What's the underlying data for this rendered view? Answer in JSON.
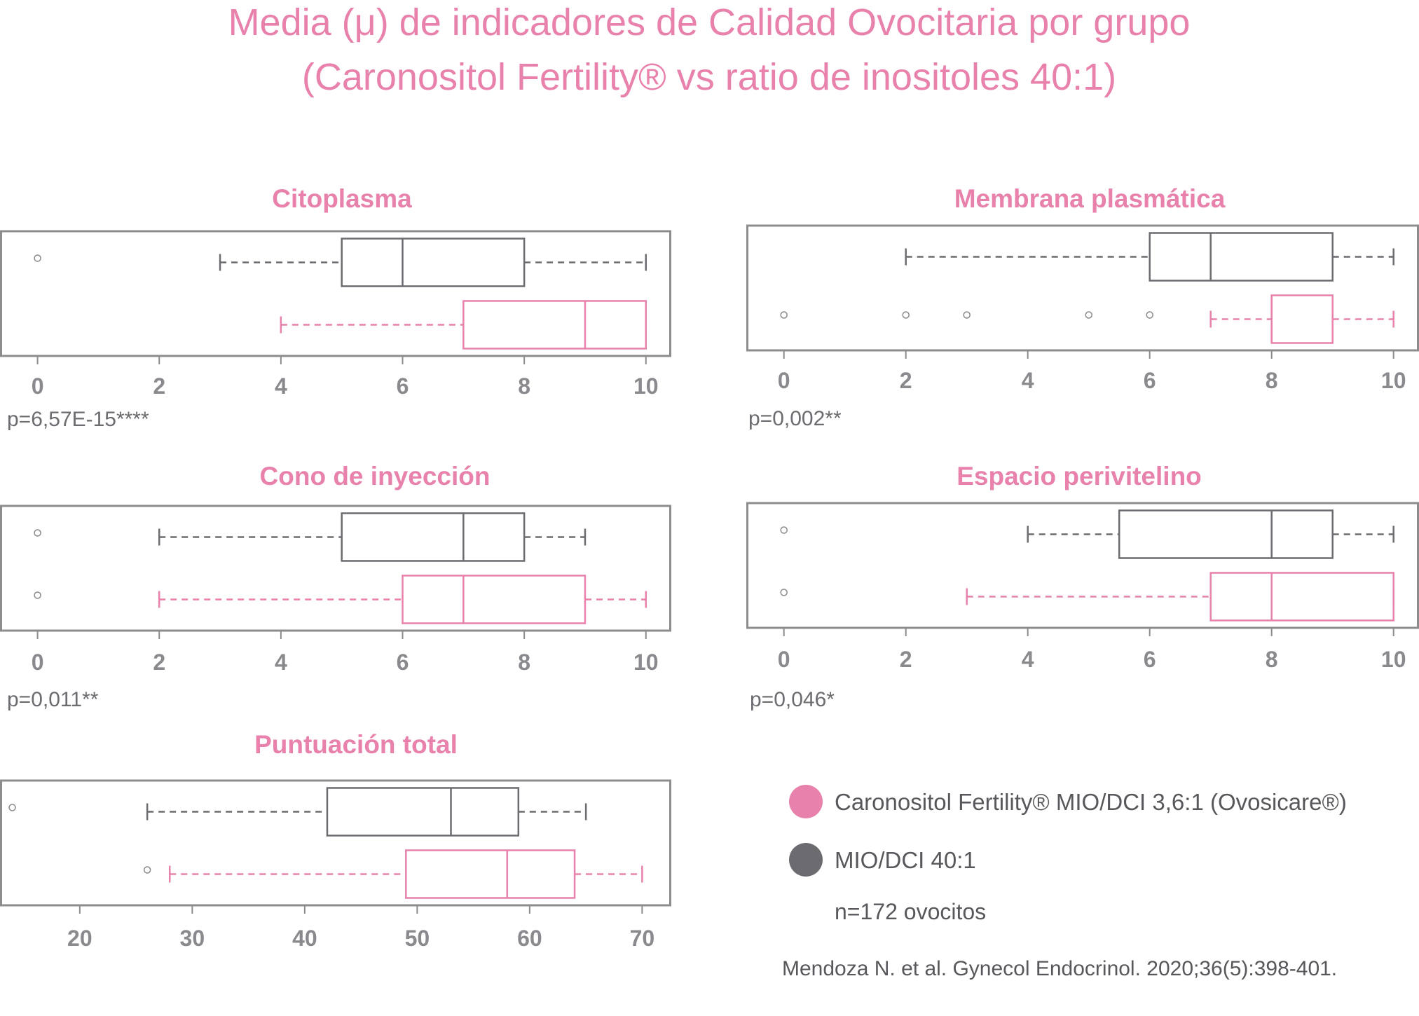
{
  "title": {
    "line1": "Media (μ) de indicadores de Calidad Ovocitaria por grupo",
    "line2": "(Caronositol Fertility® vs ratio de inositoles 40:1)"
  },
  "colors": {
    "caronositol": "#e881ab",
    "mio_dci": "#6b6b70",
    "frame": "#8c8c8c",
    "accent_text": "#e881ab"
  },
  "legend": {
    "items": [
      {
        "label": "Caronositol Fertility® MIO/DCI 3,6:1 (Ovosicare®)",
        "color": "#e881ab",
        "key": "caronositol"
      },
      {
        "label": "MIO/DCI 40:1",
        "color": "#6b6b70",
        "key": "mio_dci"
      }
    ],
    "note": "n=172 ovocitos"
  },
  "citation": "Mendoza N. et al. Gynecol Endocrinol. 2020;36(5):398-401.",
  "chart_data": [
    {
      "type": "boxplot",
      "title": "Citoplasma",
      "ticks": [
        "0",
        "2",
        "4",
        "6",
        "8",
        "10"
      ],
      "xlim": [
        -0.6,
        10.4
      ],
      "pvalue": "p=6,57E-15****",
      "series": [
        {
          "group": "mio_dci",
          "whisker_low": 3,
          "q1": 5,
          "median": 6,
          "q3": 8,
          "whisker_high": 10,
          "outliers": [
            0
          ]
        },
        {
          "group": "caronositol",
          "whisker_low": 4,
          "q1": 7,
          "median": 9,
          "q3": 10,
          "whisker_high": 10,
          "outliers": []
        }
      ]
    },
    {
      "type": "boxplot",
      "title": "Membrana plasmática",
      "ticks": [
        "0",
        "2",
        "4",
        "6",
        "8",
        "10"
      ],
      "xlim": [
        -0.6,
        10.4
      ],
      "pvalue": "p=0,002**",
      "series": [
        {
          "group": "mio_dci",
          "whisker_low": 2,
          "q1": 6,
          "median": 7,
          "q3": 9,
          "whisker_high": 10,
          "outliers": []
        },
        {
          "group": "caronositol",
          "whisker_low": 7,
          "q1": 8,
          "median": 8,
          "q3": 9,
          "whisker_high": 10,
          "outliers": [
            0,
            2,
            3,
            5,
            6
          ]
        }
      ]
    },
    {
      "type": "boxplot",
      "title": "Cono de inyección",
      "ticks": [
        "0",
        "2",
        "4",
        "6",
        "8",
        "10"
      ],
      "xlim": [
        -0.6,
        10.4
      ],
      "pvalue": "p=0,011**",
      "series": [
        {
          "group": "mio_dci",
          "whisker_low": 2,
          "q1": 5,
          "median": 7,
          "q3": 8,
          "whisker_high": 9,
          "outliers": [
            0
          ]
        },
        {
          "group": "caronositol",
          "whisker_low": 2,
          "q1": 6,
          "median": 7,
          "q3": 9,
          "whisker_high": 10,
          "outliers": [
            0
          ]
        }
      ]
    },
    {
      "type": "boxplot",
      "title": "Espacio perivitelino",
      "ticks": [
        "0",
        "2",
        "4",
        "6",
        "8",
        "10"
      ],
      "xlim": [
        -0.6,
        10.4
      ],
      "pvalue": "p=0,046*",
      "series": [
        {
          "group": "mio_dci",
          "whisker_low": 4,
          "q1": 5.5,
          "median": 8,
          "q3": 9,
          "whisker_high": 10,
          "outliers": [
            0
          ]
        },
        {
          "group": "caronositol",
          "whisker_low": 3,
          "q1": 7,
          "median": 8,
          "q3": 10,
          "whisker_high": 10,
          "outliers": [
            0
          ]
        }
      ]
    },
    {
      "type": "boxplot",
      "title": "Puntuación total",
      "ticks": [
        "20",
        "30",
        "40",
        "50",
        "60",
        "70"
      ],
      "xlim": [
        13,
        72.5
      ],
      "pvalue": "",
      "series": [
        {
          "group": "mio_dci",
          "whisker_low": 26,
          "q1": 42,
          "median": 53,
          "q3": 59,
          "whisker_high": 65,
          "outliers": [
            14
          ]
        },
        {
          "group": "caronositol",
          "whisker_low": 28,
          "q1": 49,
          "median": 58,
          "q3": 64,
          "whisker_high": 70,
          "outliers": [
            26
          ]
        }
      ]
    }
  ]
}
